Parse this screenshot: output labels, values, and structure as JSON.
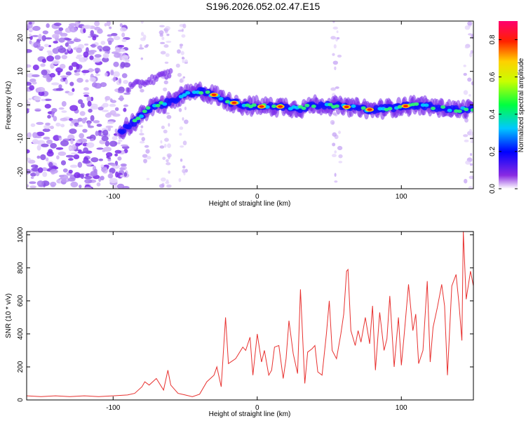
{
  "title": "S196.2026.052.02.47.E15",
  "chart_data": [
    {
      "type": "heatmap",
      "name": "spectrogram",
      "xlabel": "Height of straight line (km)",
      "ylabel": "Frequency (Hz)",
      "xlim": [
        -160,
        150
      ],
      "ylim": [
        -25,
        25
      ],
      "xticks": [
        -100,
        0,
        100
      ],
      "yticks": [
        -20,
        -10,
        0,
        10,
        20
      ],
      "colorbar": {
        "label": "Normalized spectral amplitude",
        "range": [
          0.0,
          0.9
        ],
        "ticks": [
          0.0,
          0.2,
          0.4,
          0.6,
          0.8
        ]
      },
      "ridge": [
        {
          "x": -95,
          "y": -8
        },
        {
          "x": -85,
          "y": -5
        },
        {
          "x": -75,
          "y": -1
        },
        {
          "x": -60,
          "y": 1
        },
        {
          "x": -50,
          "y": 3
        },
        {
          "x": -40,
          "y": 4
        },
        {
          "x": -30,
          "y": 3
        },
        {
          "x": -20,
          "y": 1
        },
        {
          "x": -10,
          "y": 0
        },
        {
          "x": 0,
          "y": -0.5
        },
        {
          "x": 10,
          "y": -0.5
        },
        {
          "x": 20,
          "y": -0.5
        },
        {
          "x": 30,
          "y": -1
        },
        {
          "x": 40,
          "y": 0
        },
        {
          "x": 50,
          "y": 0
        },
        {
          "x": 60,
          "y": -0.5
        },
        {
          "x": 70,
          "y": -1
        },
        {
          "x": 80,
          "y": -1.5
        },
        {
          "x": 90,
          "y": -1
        },
        {
          "x": 100,
          "y": -0.5
        },
        {
          "x": 110,
          "y": 0
        },
        {
          "x": 120,
          "y": -0.5
        },
        {
          "x": 130,
          "y": -1
        },
        {
          "x": 140,
          "y": -1.5
        },
        {
          "x": 150,
          "y": -1
        }
      ]
    },
    {
      "type": "line",
      "name": "snr",
      "xlabel": "Height of straight line (km)",
      "ylabel": "SNR (10 * v/v)",
      "xlim": [
        -160,
        150
      ],
      "ylim": [
        0,
        1020
      ],
      "xticks": [
        -100,
        0,
        100
      ],
      "yticks": [
        0,
        200,
        400,
        600,
        800,
        1000
      ],
      "color": "#e8312f",
      "series": [
        {
          "name": "SNR",
          "x": [
            -160,
            -150,
            -140,
            -130,
            -120,
            -110,
            -100,
            -90,
            -85,
            -80,
            -78,
            -75,
            -70,
            -65,
            -62,
            -60,
            -55,
            -50,
            -45,
            -40,
            -35,
            -30,
            -28,
            -25,
            -22,
            -20,
            -15,
            -10,
            -8,
            -5,
            -3,
            0,
            3,
            5,
            8,
            10,
            12,
            15,
            18,
            20,
            22,
            25,
            28,
            30,
            33,
            35,
            38,
            40,
            42,
            45,
            48,
            50,
            52,
            55,
            58,
            60,
            62,
            63,
            65,
            68,
            70,
            72,
            75,
            78,
            80,
            82,
            85,
            88,
            90,
            92,
            95,
            98,
            100,
            102,
            105,
            108,
            110,
            112,
            115,
            118,
            120,
            122,
            125,
            128,
            130,
            132,
            135,
            138,
            140,
            142,
            143,
            145,
            148,
            150
          ],
          "y": [
            25,
            20,
            25,
            20,
            25,
            20,
            25,
            30,
            40,
            80,
            110,
            90,
            130,
            60,
            180,
            90,
            40,
            30,
            20,
            35,
            110,
            150,
            200,
            80,
            500,
            220,
            250,
            320,
            300,
            380,
            150,
            400,
            230,
            300,
            150,
            180,
            320,
            330,
            130,
            250,
            480,
            280,
            160,
            670,
            100,
            290,
            310,
            330,
            170,
            150,
            400,
            600,
            300,
            250,
            400,
            520,
            780,
            790,
            420,
            330,
            420,
            350,
            500,
            340,
            570,
            180,
            530,
            300,
            370,
            630,
            200,
            500,
            210,
            400,
            700,
            420,
            520,
            220,
            300,
            720,
            230,
            440,
            560,
            700,
            570,
            150,
            690,
            760,
            580,
            360,
            1020,
            610,
            780,
            690
          ]
        }
      ]
    }
  ]
}
